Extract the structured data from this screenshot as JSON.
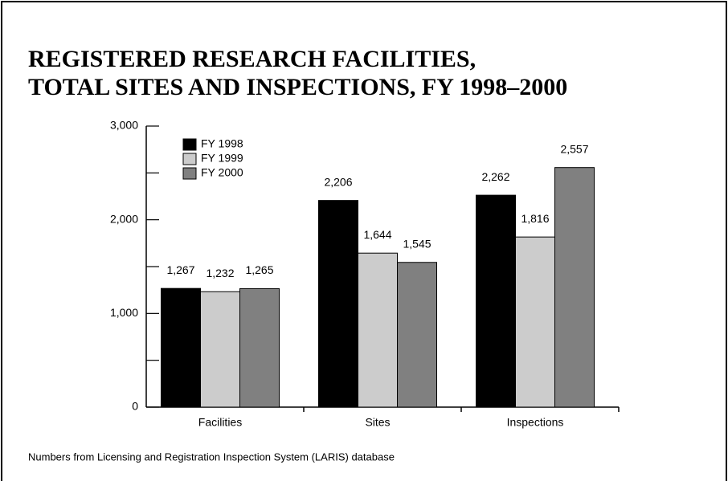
{
  "chart_data": {
    "type": "bar",
    "title": [
      "REGISTERED RESEARCH FACILITIES,",
      "TOTAL SITES AND INSPECTIONS, FY 1998–2000"
    ],
    "categories": [
      "Facilities",
      "Sites",
      "Inspections"
    ],
    "series": [
      {
        "name": "FY 1998",
        "color": "#000000",
        "values": [
          1267,
          2206,
          2262
        ],
        "value_labels": [
          "1,267",
          "2,206",
          "2,262"
        ]
      },
      {
        "name": "FY 1999",
        "color": "#cccccc",
        "values": [
          1232,
          1644,
          1816
        ],
        "value_labels": [
          "1,232",
          "1,644",
          "1,816"
        ]
      },
      {
        "name": "FY 2000",
        "color": "#808080",
        "values": [
          1265,
          1545,
          2557
        ],
        "value_labels": [
          "1,265",
          "1,545",
          "2,557"
        ]
      }
    ],
    "ylim": [
      0,
      3000
    ],
    "yticks": [
      0,
      {
        "value": 1000,
        "label": "1,000"
      },
      {
        "value": 2000,
        "label": "2,000"
      },
      {
        "value": 3000,
        "label": "3,000"
      }
    ],
    "yticks_minor": [
      500,
      1500,
      2500
    ],
    "grid": false,
    "legend": "upper left",
    "caption": "Numbers from Licensing and Registration Inspection System (LARIS) database"
  }
}
